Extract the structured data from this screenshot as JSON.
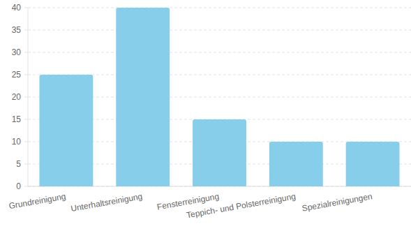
{
  "chart_data": {
    "type": "bar",
    "categories": [
      "Grundreinigung",
      "Unterhaltsreinigung",
      "Fensterreinigung",
      "Teppich- und Polsterreinigung",
      "Spezialreinigungen"
    ],
    "values": [
      25,
      40,
      15,
      10,
      10
    ],
    "color": "#87ceeb",
    "ylim": [
      0,
      40
    ],
    "yticks": [
      0,
      5,
      10,
      15,
      20,
      25,
      30,
      35,
      40
    ],
    "grid": true
  }
}
